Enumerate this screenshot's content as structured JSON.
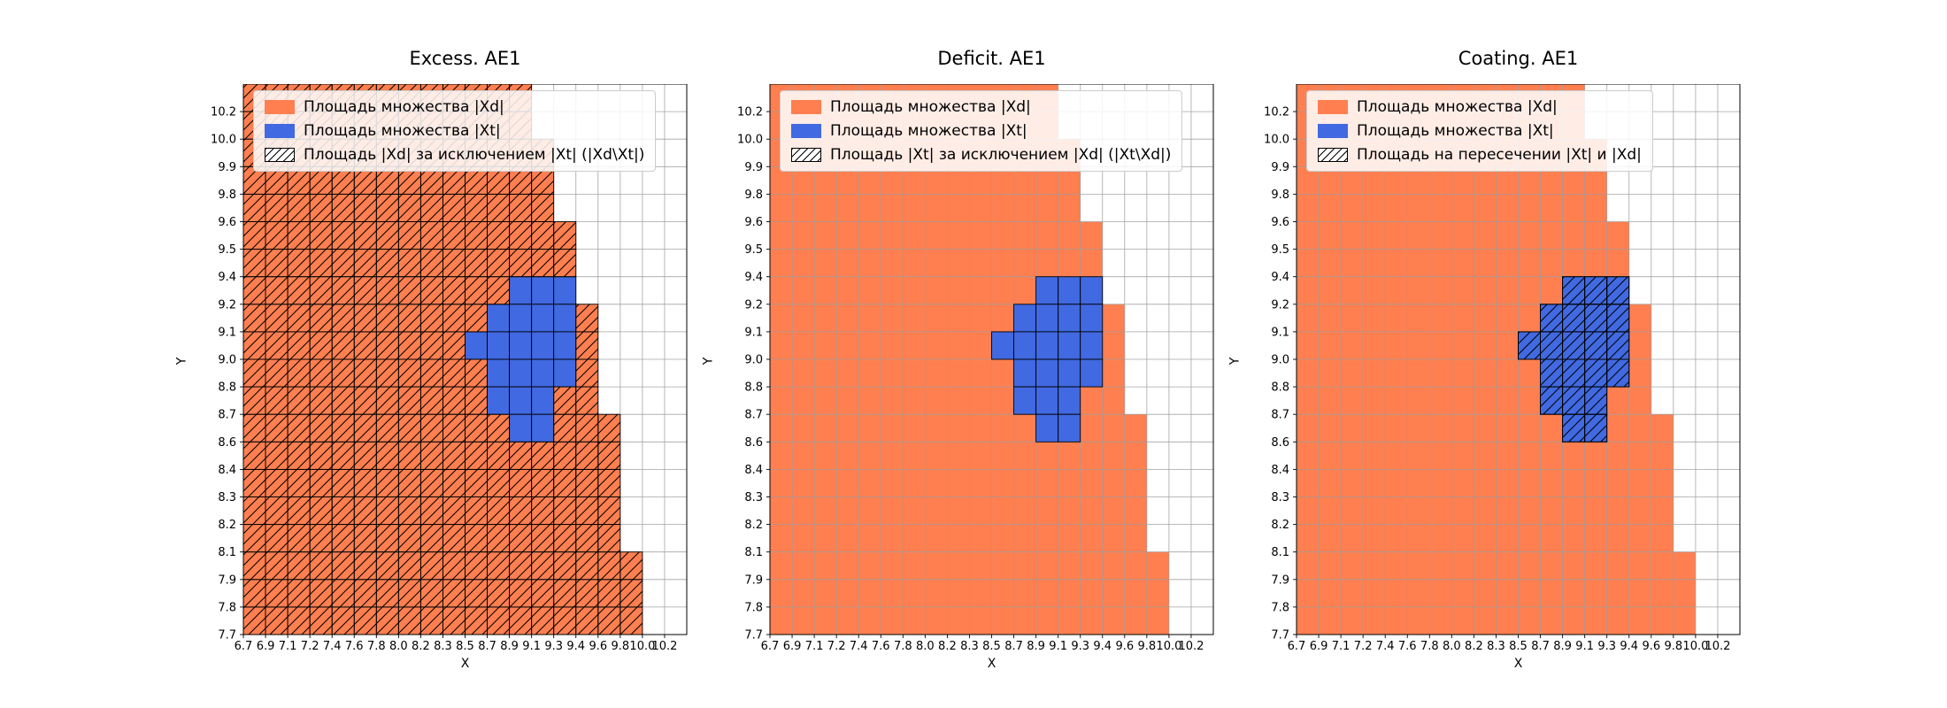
{
  "page": {
    "background": "#ffffff"
  },
  "colors": {
    "xd_fill": "#ff7f50",
    "xt_fill": "#4169e1",
    "grid_line": "#9b9b9b",
    "cell_edge": "#000000",
    "spine": "#000000",
    "legend_border": "#cccccc"
  },
  "chart_data": {
    "type": "heatmap",
    "grid": {
      "cols": 20,
      "rows": 20,
      "x_tick_labels": [
        "6.7",
        "6.9",
        "7.1",
        "7.2",
        "7.4",
        "7.6",
        "7.8",
        "8.0",
        "8.2",
        "8.3",
        "8.5",
        "8.7",
        "8.9",
        "9.1",
        "9.3",
        "9.4",
        "9.6",
        "9.8",
        "10.0",
        "10.2"
      ],
      "y_tick_labels": [
        "10.2",
        "10.0",
        "9.9",
        "9.8",
        "9.6",
        "9.5",
        "9.4",
        "9.2",
        "9.1",
        "9.0",
        "8.8",
        "8.7",
        "8.6",
        "8.4",
        "8.3",
        "8.2",
        "8.1",
        "7.9",
        "7.8",
        "7.7"
      ],
      "orange_extent_by_row": [
        13,
        13,
        14,
        14,
        14,
        15,
        15,
        15,
        16,
        16,
        16,
        16,
        17,
        17,
        17,
        17,
        17,
        18,
        18,
        18
      ],
      "blue_cells_by_row": {
        "7": [
          12,
          14
        ],
        "8": [
          11,
          14
        ],
        "9": [
          10,
          14
        ],
        "10": [
          11,
          14
        ],
        "11": [
          11,
          13
        ],
        "12": [
          12,
          13
        ]
      }
    },
    "charts": [
      {
        "title": "Excess. AE1",
        "xlabel": "X",
        "ylabel": "Y",
        "hatch": "xd_minus_xt",
        "legend": [
          {
            "swatch": "xd",
            "label": "Площадь множества |Xd|"
          },
          {
            "swatch": "xt",
            "label": "Площадь множества  |Xt|"
          },
          {
            "swatch": "hatch",
            "label": "Площадь |Xd| за исключением |Xt| (|Xd\\Xt|)"
          }
        ]
      },
      {
        "title": "Deficit. AE1",
        "xlabel": "X",
        "ylabel": "Y",
        "hatch": "none",
        "legend": [
          {
            "swatch": "xd",
            "label": "Площадь множества |Xd|"
          },
          {
            "swatch": "xt",
            "label": "Площадь множества  |Xt|"
          },
          {
            "swatch": "hatch",
            "label": "Площадь |Xt| за исключением |Xd| (|Xt\\Xd|)"
          }
        ]
      },
      {
        "title": "Coating. AE1",
        "xlabel": "X",
        "ylabel": "Y",
        "hatch": "intersection",
        "legend": [
          {
            "swatch": "xd",
            "label": "Площадь множества |Xd|"
          },
          {
            "swatch": "xt",
            "label": "Площадь множества  |Xt|"
          },
          {
            "swatch": "hatch",
            "label": "Площадь на пересечении |Xt| и |Xd|"
          }
        ]
      }
    ]
  }
}
